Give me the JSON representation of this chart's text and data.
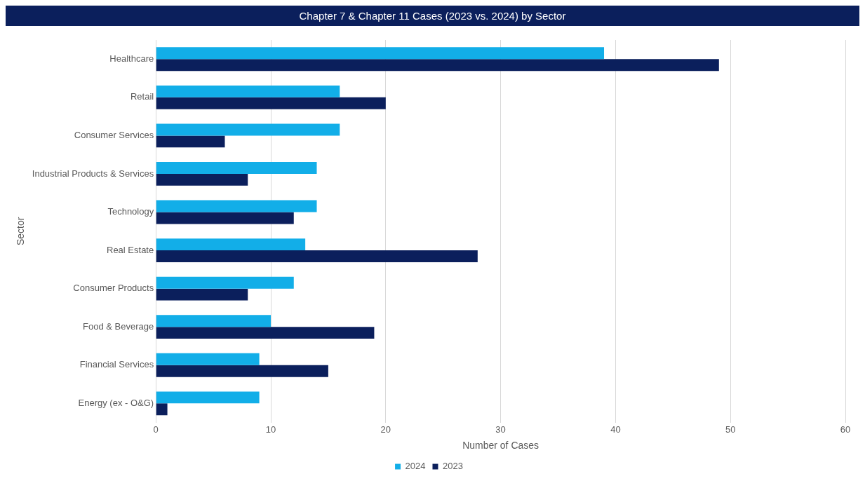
{
  "chart_data": {
    "type": "bar",
    "orientation": "horizontal",
    "title": "Chapter 7 & Chapter 11 Cases (2023 vs. 2024) by Sector",
    "xlabel": "Number of Cases",
    "ylabel": "Sector",
    "categories": [
      "Healthcare",
      "Retail",
      "Consumer Services",
      "Industrial Products & Services",
      "Technology",
      "Real Estate",
      "Consumer Products",
      "Food & Beverage",
      "Financial Services",
      "Energy (ex - O&G)"
    ],
    "series": [
      {
        "name": "2024",
        "color": "#12aee8",
        "values": [
          39,
          16,
          16,
          14,
          14,
          13,
          12,
          10,
          9,
          9
        ]
      },
      {
        "name": "2023",
        "color": "#0b1f5c",
        "values": [
          49,
          20,
          6,
          8,
          12,
          28,
          8,
          19,
          15,
          1
        ]
      }
    ],
    "xlim": [
      0,
      60
    ],
    "xticks": [
      0,
      10,
      20,
      30,
      40,
      50,
      60
    ],
    "grid": "x",
    "legend": "bottom"
  }
}
